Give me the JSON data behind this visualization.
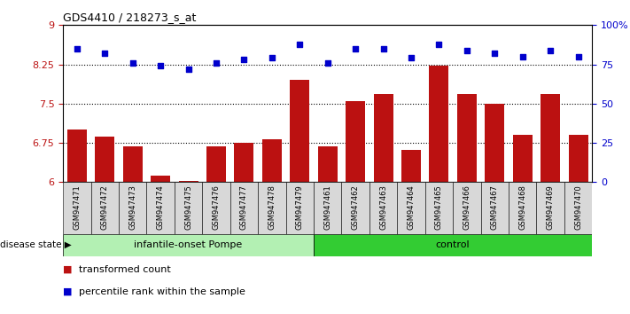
{
  "title": "GDS4410 / 218273_s_at",
  "samples": [
    "GSM947471",
    "GSM947472",
    "GSM947473",
    "GSM947474",
    "GSM947475",
    "GSM947476",
    "GSM947477",
    "GSM947478",
    "GSM947479",
    "GSM947461",
    "GSM947462",
    "GSM947463",
    "GSM947464",
    "GSM947465",
    "GSM947466",
    "GSM947467",
    "GSM947468",
    "GSM947469",
    "GSM947470"
  ],
  "bar_values": [
    7.0,
    6.87,
    6.68,
    6.12,
    6.03,
    6.68,
    6.75,
    6.82,
    7.95,
    6.68,
    7.55,
    7.68,
    6.62,
    8.22,
    7.68,
    7.5,
    6.9,
    7.68,
    6.9
  ],
  "dot_values": [
    85,
    82,
    76,
    74,
    72,
    76,
    78,
    79,
    88,
    76,
    85,
    85,
    79,
    88,
    84,
    82,
    80,
    84,
    80
  ],
  "group1_count": 9,
  "group2_count": 10,
  "group1_label": "infantile-onset Pompe",
  "group2_label": "control",
  "group1_color": "#b3f0b3",
  "group2_color": "#33cc33",
  "bar_color": "#bb1111",
  "dot_color": "#0000cc",
  "ylim_left": [
    6,
    9
  ],
  "ylim_right": [
    0,
    100
  ],
  "yticks_left": [
    6,
    6.75,
    7.5,
    8.25,
    9
  ],
  "yticks_right": [
    0,
    25,
    50,
    75,
    100
  ],
  "hlines": [
    6.75,
    7.5,
    8.25
  ],
  "disease_state_label": "disease state",
  "legend_bar_label": "transformed count",
  "legend_dot_label": "percentile rank within the sample",
  "tick_bg_color": "#d8d8d8",
  "plot_bg_color": "#ffffff"
}
